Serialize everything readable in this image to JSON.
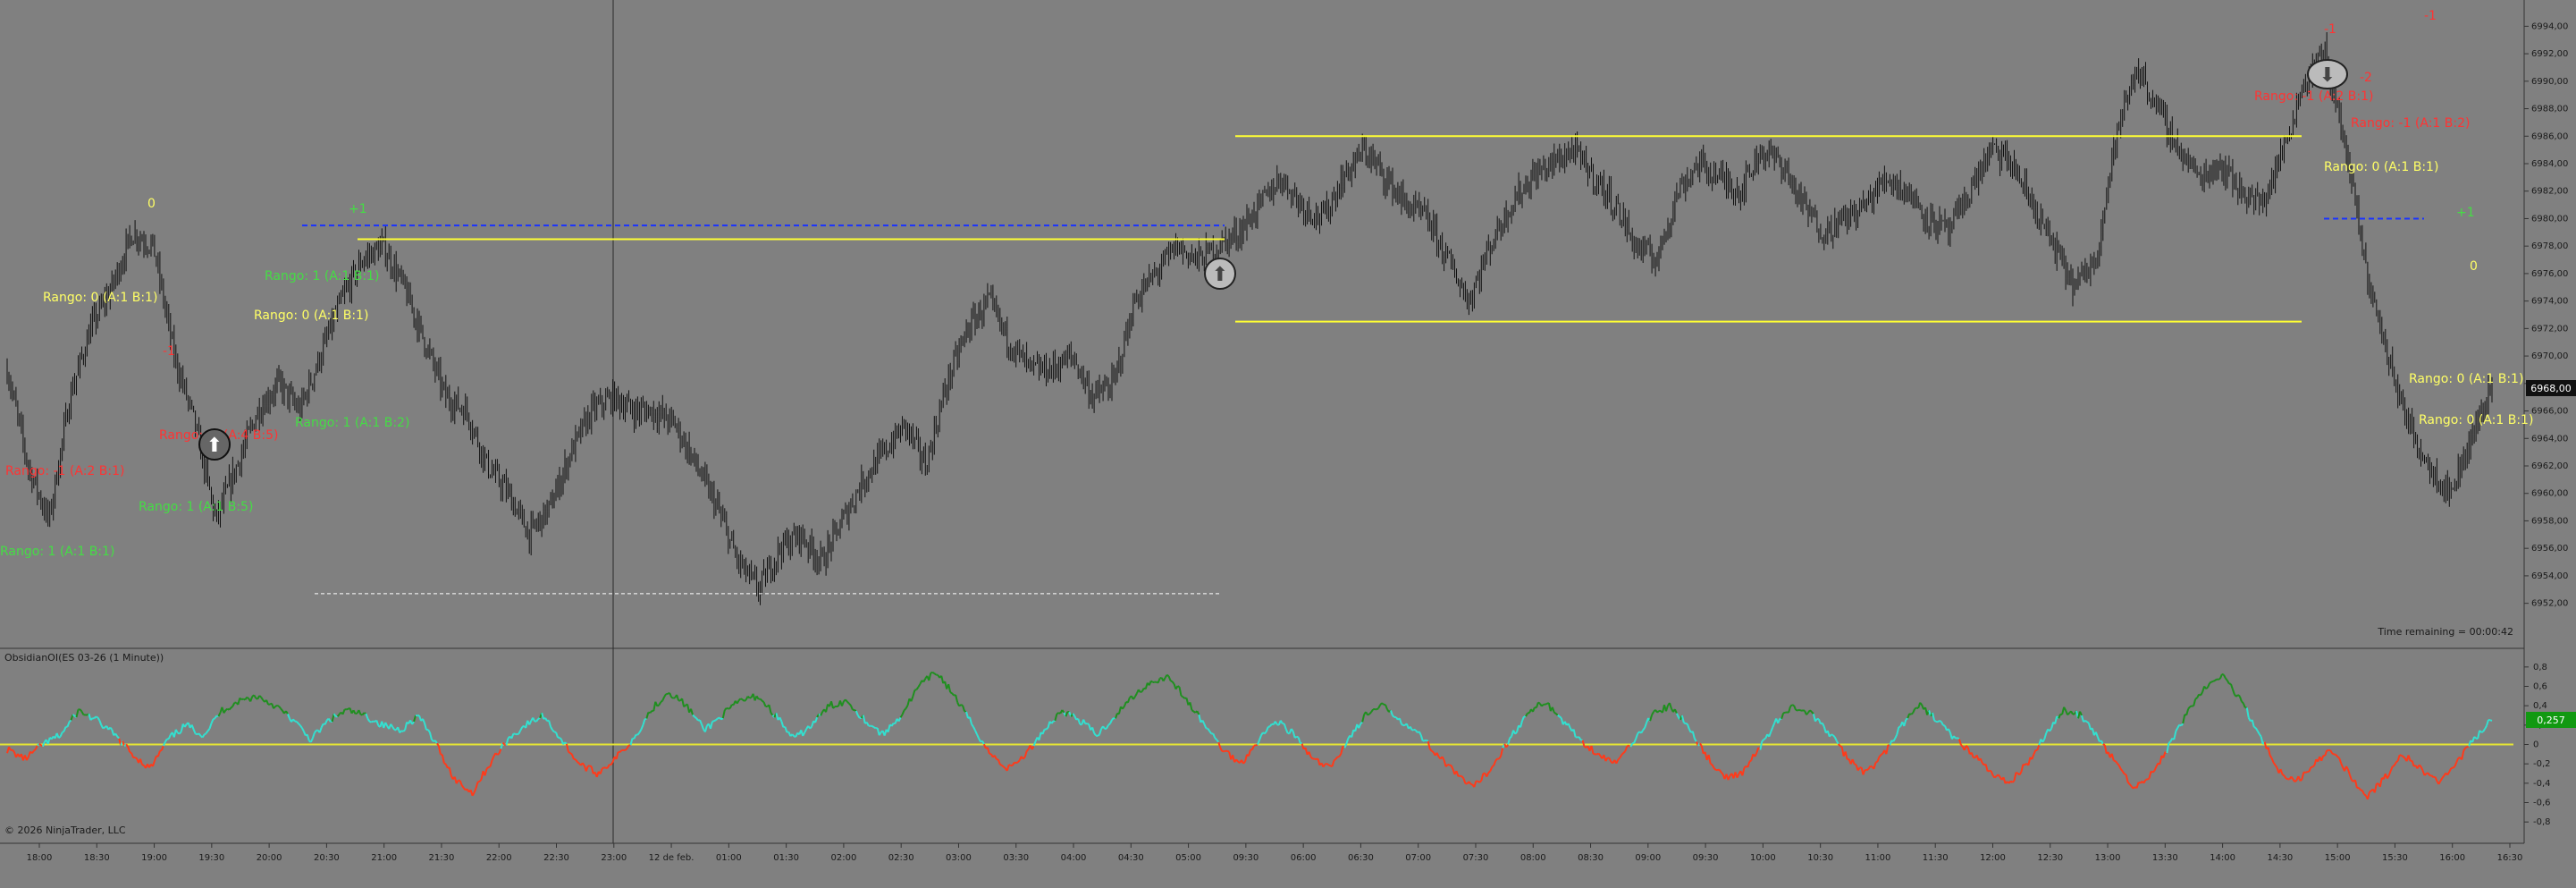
{
  "window": {
    "indicator_title": "ObsidianOI(ES 03-26 (1 Minute))",
    "time_remaining": "Time remaining = 00:00:42",
    "copyright": "© 2026 NinjaTrader, LLC"
  },
  "price_axis": {
    "ticks": [
      "6994,00",
      "6992,00",
      "6990,00",
      "6988,00",
      "6986,00",
      "6984,00",
      "6982,00",
      "6980,00",
      "6978,00",
      "6976,00",
      "6974,00",
      "6972,00",
      "6970,00",
      "6968,00",
      "6966,00",
      "6964,00",
      "6962,00",
      "6960,00",
      "6958,00",
      "6956,00",
      "6954,00",
      "6952,00"
    ],
    "current_price": "6968,00"
  },
  "osc_axis": {
    "ticks": [
      "0,8",
      "0,6",
      "0,4",
      "0,2",
      "0",
      "-0,2",
      "-0,4",
      "-0,6",
      "-0,8"
    ],
    "current_value": "0,257"
  },
  "time_axis": {
    "ticks": [
      "18:00",
      "18:30",
      "19:00",
      "19:30",
      "20:00",
      "20:30",
      "21:00",
      "21:30",
      "22:00",
      "22:30",
      "23:00",
      "12 de feb.",
      "01:00",
      "01:30",
      "02:00",
      "02:30",
      "03:00",
      "03:30",
      "04:00",
      "04:30",
      "05:00",
      "09:30",
      "06:00",
      "06:30",
      "07:00",
      "07:30",
      "08:00",
      "08:30",
      "09:00",
      "09:30",
      "10:00",
      "10:30",
      "11:00",
      "11:30",
      "12:00",
      "12:30",
      "13:00",
      "13:30",
      "14:00",
      "14:30",
      "15:00",
      "15:30",
      "16:00",
      "16:30"
    ]
  },
  "annotations": [
    {
      "text": "0",
      "color": "#ffff66"
    },
    {
      "text": "Rango: 0 (A:1 B:1)",
      "color": "#ffff66"
    },
    {
      "text": "-1",
      "color": "#ff3333"
    },
    {
      "text": "Rango: -1 (A:4 B:5)",
      "color": "#ff3333"
    },
    {
      "text": "Rango: -1 (A:2 B:1)",
      "color": "#ff3333"
    },
    {
      "text": "Rango: 0 (A:1 B:1)",
      "color": "#ffff66"
    },
    {
      "text": "Rango: 1 (A:1 B:5)",
      "color": "#44dd44"
    },
    {
      "text": "Rango: 1 (A:1 B:1)",
      "color": "#44dd44"
    },
    {
      "text": "+1",
      "color": "#44dd44"
    },
    {
      "text": "Rango: 1 (A:1 B:1)",
      "color": "#44dd44"
    },
    {
      "text": "Rango: 1 (A:1 B:2)",
      "color": "#44dd44"
    },
    {
      "text": "-1",
      "color": "#ff3333"
    },
    {
      "text": "-2",
      "color": "#ff3333"
    },
    {
      "text": "Rango: -1 (A:2 B:1)",
      "color": "#ff3333"
    },
    {
      "text": "Rango: -1 (A:1 B:2)",
      "color": "#ff3333"
    },
    {
      "text": "Rango: 0 (A:1 B:1)",
      "color": "#ffff66"
    },
    {
      "text": "-1",
      "color": "#ff3333"
    },
    {
      "text": "0",
      "color": "#ffff66"
    },
    {
      "text": "+1",
      "color": "#44dd44"
    },
    {
      "text": "Rango: 0 (A:1 B:1)",
      "color": "#ffff66"
    },
    {
      "text": "Rango: 0 (A:1 B:1)",
      "color": "#ffff66"
    }
  ],
  "colors": {
    "background": "#808080",
    "candles": "#111111",
    "range_line": "#ffff33",
    "dashed_blue": "#1a33ff",
    "osc_up_strong": "#1f8f1f",
    "osc_up": "#33e0d0",
    "osc_down": "#ff3a1a",
    "osc_zero": "#e6e633",
    "current_price_bg": "#111111",
    "current_osc_bg": "#119911"
  },
  "chart_data": [
    {
      "type": "candlestick",
      "title": "",
      "ylim": [
        6951,
        6995
      ],
      "current_price": 6968.0,
      "series": [
        {
          "values": [
            6969,
            6962,
            6958,
            6967,
            6972,
            6975,
            6979,
            6978,
            6970,
            6965,
            6958,
            6962,
            6966,
            6968,
            6966,
            6970,
            6974,
            6977,
            6978,
            6975,
            6971,
            6967,
            6966,
            6962,
            6960,
            6957,
            6959,
            6963,
            6966,
            6967,
            6966,
            6966,
            6965,
            6962,
            6959,
            6955,
            6953,
            6956,
            6957,
            6955,
            6958,
            6961,
            6963,
            6965,
            6962,
            6968,
            6972,
            6974,
            6971,
            6969,
            6969,
            6970,
            6967,
            6968,
            6974,
            6976,
            6978,
            6977,
            6978,
            6979,
            6981,
            6983,
            6981,
            6980,
            6983,
            6985,
            6983,
            6981,
            6980,
            6977,
            6974,
            6978,
            6981,
            6983,
            6984,
            6985,
            6983,
            6981,
            6978,
            6977,
            6982,
            6984,
            6983,
            6982,
            6985,
            6984,
            6981,
            6979,
            6980,
            6981,
            6983,
            6982,
            6980,
            6979,
            6982,
            6985,
            6984,
            6981,
            6978,
            6975,
            6977,
            6986,
            6991,
            6988,
            6985,
            6983,
            6984,
            6982,
            6981,
            6985,
            6990,
            6992,
            6985,
            6976,
            6970,
            6965,
            6962,
            6960,
            6964,
            6968
          ]
        }
      ],
      "range_levels": [
        {
          "name": "upper",
          "value": 6986.0
        },
        {
          "name": "mid",
          "value": 6978.5
        },
        {
          "name": "lower",
          "value": 6972.5
        }
      ]
    },
    {
      "type": "line",
      "title": "",
      "ylim": [
        -0.9,
        0.9
      ],
      "current_value": 0.257,
      "series": [
        {
          "values": [
            -0.05,
            -0.15,
            0.0,
            0.1,
            0.35,
            0.25,
            0.1,
            -0.1,
            -0.25,
            0.05,
            0.2,
            0.1,
            0.35,
            0.45,
            0.5,
            0.4,
            0.25,
            0.05,
            0.25,
            0.35,
            0.3,
            0.2,
            0.15,
            0.3,
            0.0,
            -0.35,
            -0.5,
            -0.2,
            0.05,
            0.2,
            0.3,
            0.05,
            -0.2,
            -0.3,
            -0.15,
            0.05,
            0.35,
            0.55,
            0.4,
            0.15,
            0.3,
            0.45,
            0.5,
            0.3,
            0.05,
            0.2,
            0.4,
            0.45,
            0.25,
            0.1,
            0.3,
            0.6,
            0.75,
            0.5,
            0.2,
            -0.1,
            -0.25,
            -0.1,
            0.15,
            0.35,
            0.25,
            0.1,
            0.3,
            0.5,
            0.65,
            0.7,
            0.45,
            0.2,
            -0.05,
            -0.2,
            0.05,
            0.25,
            0.1,
            -0.15,
            -0.25,
            0.05,
            0.3,
            0.4,
            0.25,
            0.1,
            -0.1,
            -0.3,
            -0.45,
            -0.25,
            0.05,
            0.3,
            0.45,
            0.25,
            0.05,
            -0.1,
            -0.2,
            0.05,
            0.3,
            0.4,
            0.2,
            -0.1,
            -0.35,
            -0.3,
            -0.05,
            0.25,
            0.4,
            0.3,
            0.1,
            -0.15,
            -0.3,
            -0.1,
            0.2,
            0.4,
            0.25,
            0.05,
            -0.1,
            -0.3,
            -0.4,
            -0.2,
            0.1,
            0.35,
            0.3,
            0.05,
            -0.2,
            -0.45,
            -0.3,
            0.0,
            0.35,
            0.6,
            0.7,
            0.45,
            0.1,
            -0.25,
            -0.4,
            -0.2,
            -0.05,
            -0.3,
            -0.55,
            -0.35,
            -0.1,
            -0.25,
            -0.4,
            -0.2,
            0.05,
            0.257
          ]
        }
      ],
      "zero_line": 0
    }
  ]
}
